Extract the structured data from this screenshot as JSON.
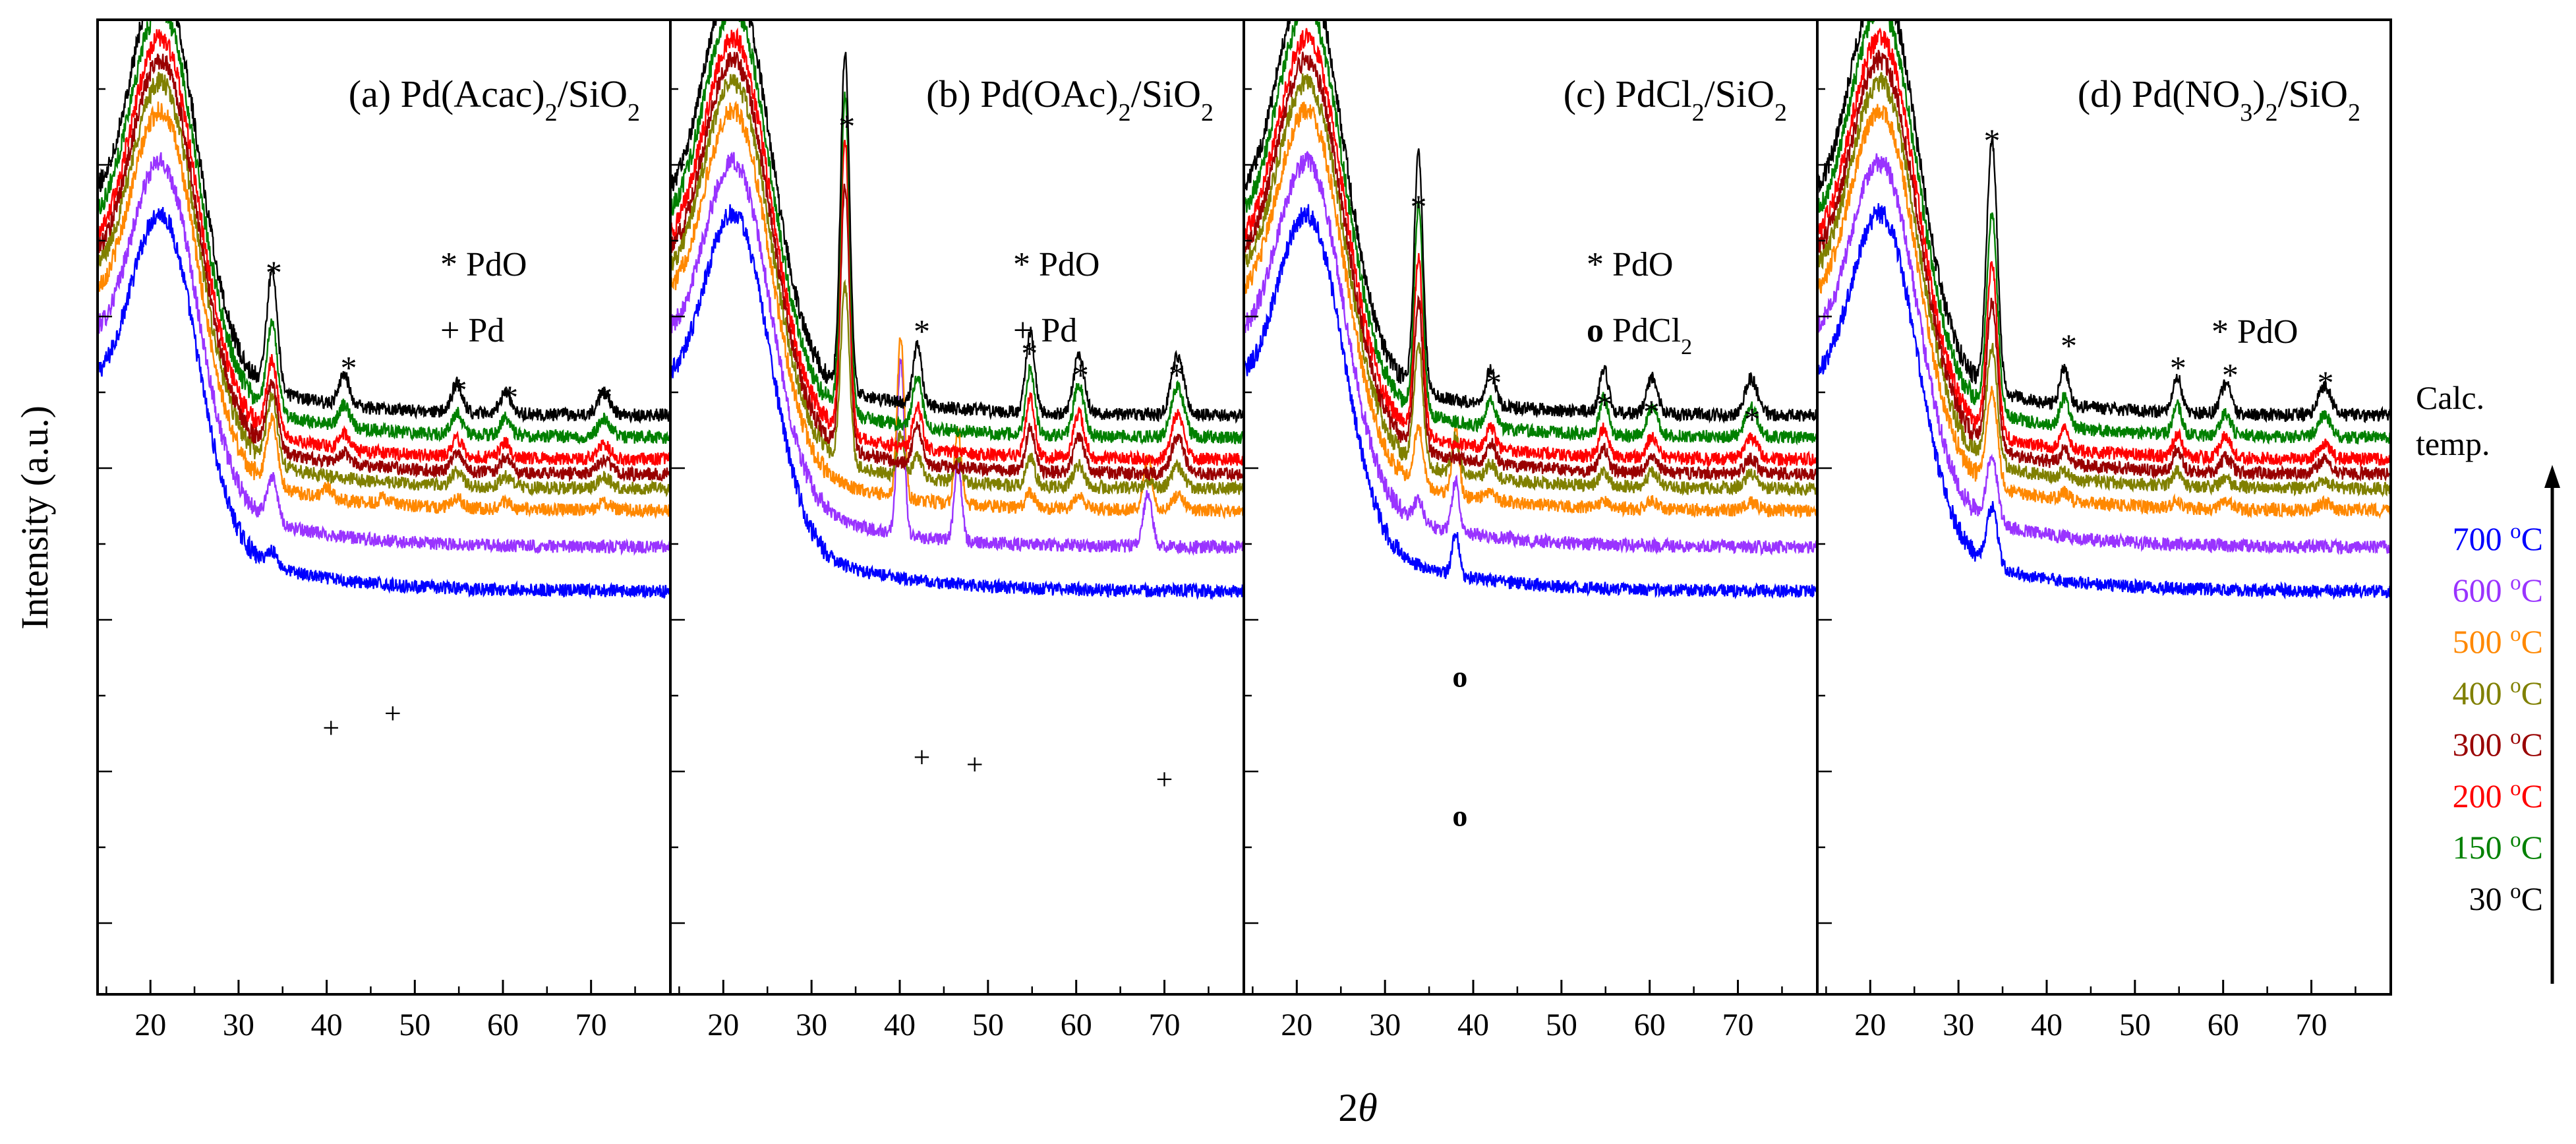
{
  "chart_data": {
    "type": "line",
    "xlabel_prefix": "2",
    "xlabel_symbol": "θ",
    "ylabel": "Intensity (a.u.)",
    "xlim": [
      14,
      79
    ],
    "xticks": [
      20,
      30,
      40,
      50,
      60,
      70
    ],
    "legend": {
      "title_line1": "Calc.",
      "title_line2": "temp.",
      "unit_sup": "o",
      "unit_suffix": "C",
      "entries": [
        {
          "temp": "700",
          "color": "#0000ff"
        },
        {
          "temp": "600",
          "color": "#9933ff"
        },
        {
          "temp": "500",
          "color": "#ff8800"
        },
        {
          "temp": "400",
          "color": "#808000"
        },
        {
          "temp": "300",
          "color": "#990000"
        },
        {
          "temp": "200",
          "color": "#ff0000"
        },
        {
          "temp": "150",
          "color": "#008000"
        },
        {
          "temp": "30",
          "color": "#000000"
        }
      ]
    },
    "series_order_top_to_bottom": [
      "700 °C",
      "600 °C",
      "500 °C",
      "400 °C",
      "300 °C",
      "200 °C",
      "150 °C",
      "30 °C"
    ],
    "trace_offset": 0.5,
    "panels": [
      {
        "id": "a",
        "title": {
          "prefix": "(a) Pd(Acac)",
          "sub1": "2",
          "mid": "/SiO",
          "sub2": "2",
          "tail": ""
        },
        "legend_lines": [
          {
            "sym": "*",
            "text": "PdO"
          },
          {
            "sym": "+",
            "text": "Pd"
          }
        ],
        "baseline_end": [
          1.5,
          2.6,
          3.6,
          4.4,
          5.1,
          5.8,
          6.6,
          7.4
        ],
        "hump_height": [
          4.0,
          4.1,
          4.3,
          4.4,
          4.5,
          4.6,
          4.7,
          4.8
        ],
        "peaks": [
          {
            "x": 33.8,
            "width": 0.6,
            "heights": [
              0.2,
              0.6,
              0.9,
              0.9,
              0.9,
              1.0,
              1.2,
              1.6
            ]
          },
          {
            "x": 42.0,
            "width": 0.6,
            "heights": [
              0,
              0,
              0,
              0,
              0.15,
              0.2,
              0.3,
              0.4
            ]
          },
          {
            "x": 54.8,
            "width": 0.6,
            "heights": [
              0,
              0,
              0.15,
              0.2,
              0.25,
              0.25,
              0.3,
              0.4
            ]
          },
          {
            "x": 60.3,
            "width": 0.6,
            "heights": [
              0,
              0,
              0.1,
              0.15,
              0.2,
              0.2,
              0.25,
              0.3
            ]
          },
          {
            "x": 71.5,
            "width": 0.7,
            "heights": [
              0,
              0,
              0.1,
              0.15,
              0.2,
              0.2,
              0.25,
              0.3
            ]
          },
          {
            "x": 40.1,
            "width": 0.5,
            "heights": [
              0,
              0,
              0.15,
              0,
              0,
              0,
              0,
              0
            ]
          },
          {
            "x": 46.5,
            "width": 0.5,
            "heights": [
              0,
              0,
              0.1,
              0,
              0,
              0,
              0,
              0
            ]
          }
        ],
        "markers": [
          {
            "sym": "*",
            "x": 34.0,
            "y": 9.2
          },
          {
            "sym": "*",
            "x": 42.5,
            "y": 7.9
          },
          {
            "sym": "*",
            "x": 55.0,
            "y": 7.6
          },
          {
            "sym": "*",
            "x": 60.8,
            "y": 7.5
          },
          {
            "sym": "*",
            "x": 71.5,
            "y": 7.5
          },
          {
            "sym": "+",
            "x": 40.5,
            "y": 3.0
          },
          {
            "sym": "+",
            "x": 47.5,
            "y": 3.2
          }
        ]
      },
      {
        "id": "b",
        "title": {
          "prefix": "(b) Pd(OAc)",
          "sub1": "2",
          "mid": "/SiO",
          "sub2": "2",
          "tail": ""
        },
        "legend_lines": [
          {
            "sym": "*",
            "text": "PdO"
          },
          {
            "sym": "+",
            "text": "Pd"
          }
        ],
        "baseline_end": [
          1.5,
          2.6,
          3.6,
          4.4,
          5.1,
          5.8,
          6.6,
          7.4
        ],
        "hump_height": [
          4.0,
          4.1,
          4.3,
          4.4,
          4.5,
          4.6,
          4.7,
          4.8
        ],
        "peaks": [
          {
            "x": 33.8,
            "width": 0.5,
            "heights": [
              0,
              0,
              0,
              2.4,
              3.6,
              4.0,
              4.3,
              4.6
            ]
          },
          {
            "x": 42.0,
            "width": 0.5,
            "heights": [
              0,
              0,
              0,
              0.3,
              0.5,
              0.6,
              0.7,
              0.8
            ]
          },
          {
            "x": 54.8,
            "width": 0.5,
            "heights": [
              0,
              0,
              0.2,
              0.4,
              0.6,
              0.8,
              0.9,
              1.1
            ]
          },
          {
            "x": 60.3,
            "width": 0.6,
            "heights": [
              0,
              0,
              0.2,
              0.3,
              0.5,
              0.6,
              0.7,
              0.8
            ]
          },
          {
            "x": 71.5,
            "width": 0.7,
            "heights": [
              0,
              0,
              0.2,
              0.3,
              0.5,
              0.6,
              0.7,
              0.8
            ]
          },
          {
            "x": 40.1,
            "width": 0.4,
            "heights": [
              0,
              2.4,
              2.2,
              0.6,
              0,
              0,
              0,
              0
            ]
          },
          {
            "x": 46.6,
            "width": 0.4,
            "heights": [
              0,
              1.1,
              1.0,
              0.3,
              0,
              0,
              0,
              0
            ]
          },
          {
            "x": 68.1,
            "width": 0.5,
            "heights": [
              0,
              0.7,
              0.7,
              0.1,
              0,
              0,
              0,
              0
            ]
          }
        ],
        "markers": [
          {
            "sym": "*",
            "x": 34.0,
            "y": 11.2
          },
          {
            "sym": "*",
            "x": 42.5,
            "y": 8.4
          },
          {
            "sym": "*",
            "x": 54.7,
            "y": 8.1
          },
          {
            "sym": "*",
            "x": 60.5,
            "y": 7.8
          },
          {
            "sym": "*",
            "x": 71.4,
            "y": 7.8
          },
          {
            "sym": "+",
            "x": 42.5,
            "y": 2.6
          },
          {
            "sym": "+",
            "x": 48.5,
            "y": 2.5
          },
          {
            "sym": "+",
            "x": 70.0,
            "y": 2.3
          }
        ]
      },
      {
        "id": "c",
        "title": {
          "prefix": "(c) PdCl",
          "sub1": "2",
          "mid": "/SiO",
          "sub2": "2",
          "tail": ""
        },
        "legend_lines": [
          {
            "sym": "*",
            "text": "PdO"
          },
          {
            "sym": "o",
            "text": "PdCl",
            "sub": "2"
          }
        ],
        "baseline_end": [
          1.5,
          2.6,
          3.6,
          4.4,
          5.1,
          5.8,
          6.6,
          7.4
        ],
        "hump_height": [
          4.0,
          4.1,
          4.3,
          4.4,
          4.5,
          4.6,
          4.7,
          4.8
        ],
        "peaks": [
          {
            "x": 33.8,
            "width": 0.5,
            "heights": [
              0,
              0.3,
              0.8,
              1.6,
              2.0,
              2.4,
              2.8,
              3.2
            ]
          },
          {
            "x": 42.0,
            "width": 0.5,
            "heights": [
              0,
              0,
              0.1,
              0.2,
              0.3,
              0.3,
              0.4,
              0.5
            ]
          },
          {
            "x": 54.8,
            "width": 0.5,
            "heights": [
              0,
              0,
              0.1,
              0.2,
              0.3,
              0.4,
              0.5,
              0.6
            ]
          },
          {
            "x": 60.3,
            "width": 0.6,
            "heights": [
              0,
              0,
              0.1,
              0.2,
              0.2,
              0.3,
              0.4,
              0.5
            ]
          },
          {
            "x": 71.5,
            "width": 0.7,
            "heights": [
              0,
              0,
              0.1,
              0.2,
              0.2,
              0.3,
              0.4,
              0.5
            ]
          },
          {
            "x": 38.0,
            "width": 0.4,
            "heights": [
              0.6,
              0.7,
              0.9,
              0.5,
              0,
              0,
              0,
              0
            ]
          }
        ],
        "markers": [
          {
            "sym": "*",
            "x": 33.8,
            "y": 10.1
          },
          {
            "sym": "*",
            "x": 42.3,
            "y": 7.7
          },
          {
            "sym": "*",
            "x": 54.9,
            "y": 7.4
          },
          {
            "sym": "*",
            "x": 60.2,
            "y": 7.3
          },
          {
            "sym": "*",
            "x": 71.6,
            "y": 7.2
          },
          {
            "sym": "o",
            "x": 38.5,
            "y": 3.7
          },
          {
            "sym": "o",
            "x": 38.5,
            "y": 1.8
          }
        ]
      },
      {
        "id": "d",
        "title": {
          "prefix": "(d) Pd(NO",
          "sub1": "3",
          "mid": ")",
          "sub2": "2",
          "tail": "/SiO",
          "sub3": "2"
        },
        "legend_lines": [
          {
            "sym": "*",
            "text": "PdO"
          }
        ],
        "baseline_end": [
          1.5,
          2.6,
          3.6,
          4.4,
          5.1,
          5.8,
          6.6,
          7.4
        ],
        "hump_height": [
          4.0,
          4.1,
          4.3,
          4.4,
          4.5,
          4.6,
          4.7,
          4.8
        ],
        "peaks": [
          {
            "x": 33.8,
            "width": 0.6,
            "heights": [
              0.8,
              0.9,
              1.3,
              1.6,
              2.0,
              2.3,
              2.7,
              3.4
            ]
          },
          {
            "x": 42.0,
            "width": 0.5,
            "heights": [
              0,
              0,
              0.1,
              0.1,
              0.2,
              0.3,
              0.4,
              0.5
            ]
          },
          {
            "x": 54.8,
            "width": 0.5,
            "heights": [
              0,
              0,
              0.1,
              0.2,
              0.3,
              0.3,
              0.4,
              0.5
            ]
          },
          {
            "x": 60.3,
            "width": 0.6,
            "heights": [
              0,
              0,
              0.1,
              0.1,
              0.2,
              0.3,
              0.3,
              0.4
            ]
          },
          {
            "x": 71.5,
            "width": 0.7,
            "heights": [
              0,
              0,
              0.1,
              0.1,
              0.2,
              0.2,
              0.3,
              0.4
            ]
          }
        ],
        "markers": [
          {
            "sym": "*",
            "x": 33.8,
            "y": 11.0
          },
          {
            "sym": "*",
            "x": 42.5,
            "y": 8.2
          },
          {
            "sym": "*",
            "x": 54.9,
            "y": 7.9
          },
          {
            "sym": "*",
            "x": 60.8,
            "y": 7.8
          },
          {
            "sym": "*",
            "x": 71.6,
            "y": 7.7
          }
        ]
      }
    ]
  }
}
